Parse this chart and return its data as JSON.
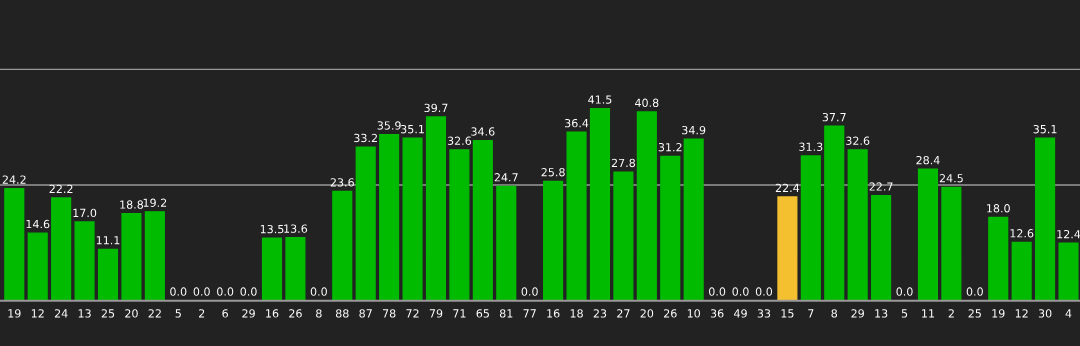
{
  "chart_data": {
    "type": "bar",
    "categories": [
      "19",
      "12",
      "24",
      "13",
      "25",
      "20",
      "22",
      "5",
      "2",
      "6",
      "29",
      "16",
      "26",
      "8",
      "88",
      "87",
      "78",
      "72",
      "79",
      "71",
      "65",
      "81",
      "77",
      "16",
      "18",
      "23",
      "27",
      "20",
      "26",
      "10",
      "36",
      "49",
      "33",
      "15",
      "7",
      "8",
      "29",
      "13",
      "5",
      "11",
      "2",
      "25",
      "19",
      "12",
      "30",
      "4"
    ],
    "values": [
      24.2,
      14.6,
      22.2,
      17.0,
      11.1,
      18.8,
      19.2,
      0.0,
      0.0,
      0.0,
      0.0,
      13.5,
      13.6,
      0.0,
      23.6,
      33.2,
      35.9,
      35.1,
      39.7,
      32.6,
      34.6,
      24.7,
      0.0,
      25.8,
      36.4,
      41.5,
      27.8,
      40.8,
      31.2,
      34.9,
      0.0,
      0.0,
      0.0,
      22.4,
      31.3,
      37.7,
      32.6,
      22.7,
      0.0,
      28.4,
      24.5,
      0.0,
      18.0,
      12.6,
      35.1,
      12.4
    ],
    "value_labels": [
      "24.2",
      "14.6",
      "22.2",
      "17.0",
      "11.1",
      "18.8",
      "19.2",
      "0.0",
      "0.0",
      "0.0",
      "0.0",
      "13.5",
      "13.6",
      "0.0",
      "23.6",
      "33.2",
      "35.9",
      "35.1",
      "39.7",
      "32.6",
      "34.6",
      "24.7",
      "0.0",
      "25.8",
      "36.4",
      "41.5",
      "27.8",
      "40.8",
      "31.2",
      "34.9",
      "0.0",
      "0.0",
      "0.0",
      "22.4",
      "31.3",
      "37.7",
      "32.6",
      "22.7",
      "0.0",
      "28.4",
      "24.5",
      "0.0",
      "18.0",
      "12.6",
      "35.1",
      "12.4"
    ],
    "colors": [
      "#00bb00",
      "#00bb00",
      "#00bb00",
      "#00bb00",
      "#00bb00",
      "#00bb00",
      "#00bb00",
      "#00bb00",
      "#00bb00",
      "#00bb00",
      "#00bb00",
      "#00bb00",
      "#00bb00",
      "#00bb00",
      "#00bb00",
      "#00bb00",
      "#00bb00",
      "#00bb00",
      "#00bb00",
      "#00bb00",
      "#00bb00",
      "#00bb00",
      "#00bb00",
      "#00bb00",
      "#00bb00",
      "#00bb00",
      "#00bb00",
      "#00bb00",
      "#00bb00",
      "#00bb00",
      "#00bb00",
      "#00bb00",
      "#00bb00",
      "#f5c030",
      "#00bb00",
      "#00bb00",
      "#00bb00",
      "#00bb00",
      "#00bb00",
      "#00bb00",
      "#00bb00",
      "#00bb00",
      "#00bb00",
      "#00bb00",
      "#00bb00",
      "#00bb00"
    ],
    "ylim": [
      0,
      65
    ],
    "ref_lines": [
      {
        "axis": "y",
        "value": 25,
        "color": "#999999"
      },
      {
        "axis": "y",
        "value": 50,
        "color": "#999999"
      }
    ],
    "tick_labels": "x",
    "legend": false
  }
}
